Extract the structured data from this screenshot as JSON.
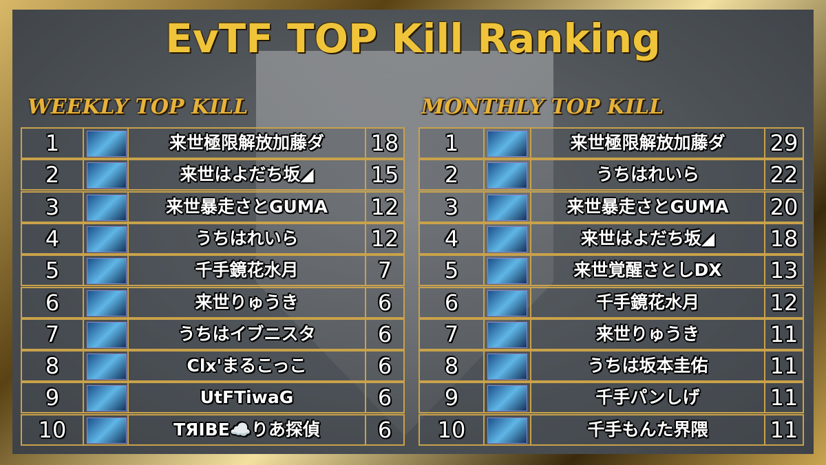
{
  "title": "EvTF TOP Kill Ranking",
  "tables": [
    {
      "heading": "WEEKLY TOP KILL",
      "rows": [
        [
          1,
          "来世極限解放加藤ダ",
          18
        ],
        [
          2,
          "来世はよだち坂◢",
          15
        ],
        [
          3,
          "来世暴走さとGUMA",
          12
        ],
        [
          4,
          "うちはれいら",
          12
        ],
        [
          5,
          "千手鏡花水月",
          7
        ],
        [
          6,
          "来世りゅうき",
          6
        ],
        [
          7,
          "うちはイブニスタ",
          6
        ],
        [
          8,
          "Clx'まるこっこ",
          6
        ],
        [
          9,
          "UtFTiwaG",
          6
        ],
        [
          10,
          "TЯIBE☁️りあ探偵",
          6
        ]
      ]
    },
    {
      "heading": "MONTHLY TOP KILL",
      "rows": [
        [
          1,
          "来世極限解放加藤ダ",
          29
        ],
        [
          2,
          "うちはれいら",
          22
        ],
        [
          3,
          "来世暴走さとGUMA",
          20
        ],
        [
          4,
          "来世はよだち坂◢",
          18
        ],
        [
          5,
          "来世覚醒さとしDX",
          13
        ],
        [
          6,
          "千手鏡花水月",
          12
        ],
        [
          7,
          "来世りゅうき",
          11
        ],
        [
          8,
          "うちは坂本圭佑",
          11
        ],
        [
          9,
          "千手パンしげ",
          11
        ],
        [
          10,
          "千手もんた界隈",
          11
        ]
      ]
    }
  ]
}
